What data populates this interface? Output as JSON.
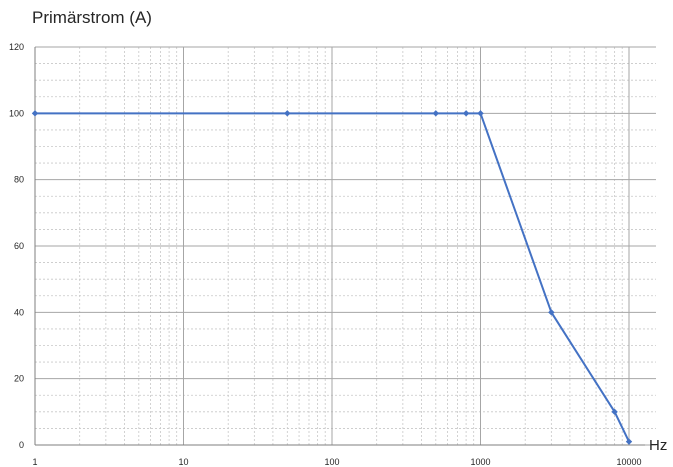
{
  "chart_data": {
    "type": "line",
    "title": "",
    "ylabel": "Primärstrom (A)",
    "xlabel": "Hz",
    "x_scale": "log",
    "xlim": [
      1,
      10000
    ],
    "ylim": [
      0,
      120
    ],
    "x_ticks": [
      "1",
      "10",
      "100",
      "1000",
      "10000"
    ],
    "y_ticks": [
      "0",
      "20",
      "40",
      "60",
      "80",
      "100",
      "120"
    ],
    "grid": true,
    "legend": "none",
    "series": [
      {
        "x": [
          1,
          50,
          500,
          800,
          1000,
          3000,
          8000,
          10000
        ],
        "y": [
          100,
          100,
          100,
          100,
          100,
          40,
          10,
          1
        ]
      }
    ],
    "colors": {
      "line": "#4472c4",
      "major_grid": "#a6a6a6",
      "minor_grid": "#c8c8c8",
      "text": "#262626"
    }
  }
}
